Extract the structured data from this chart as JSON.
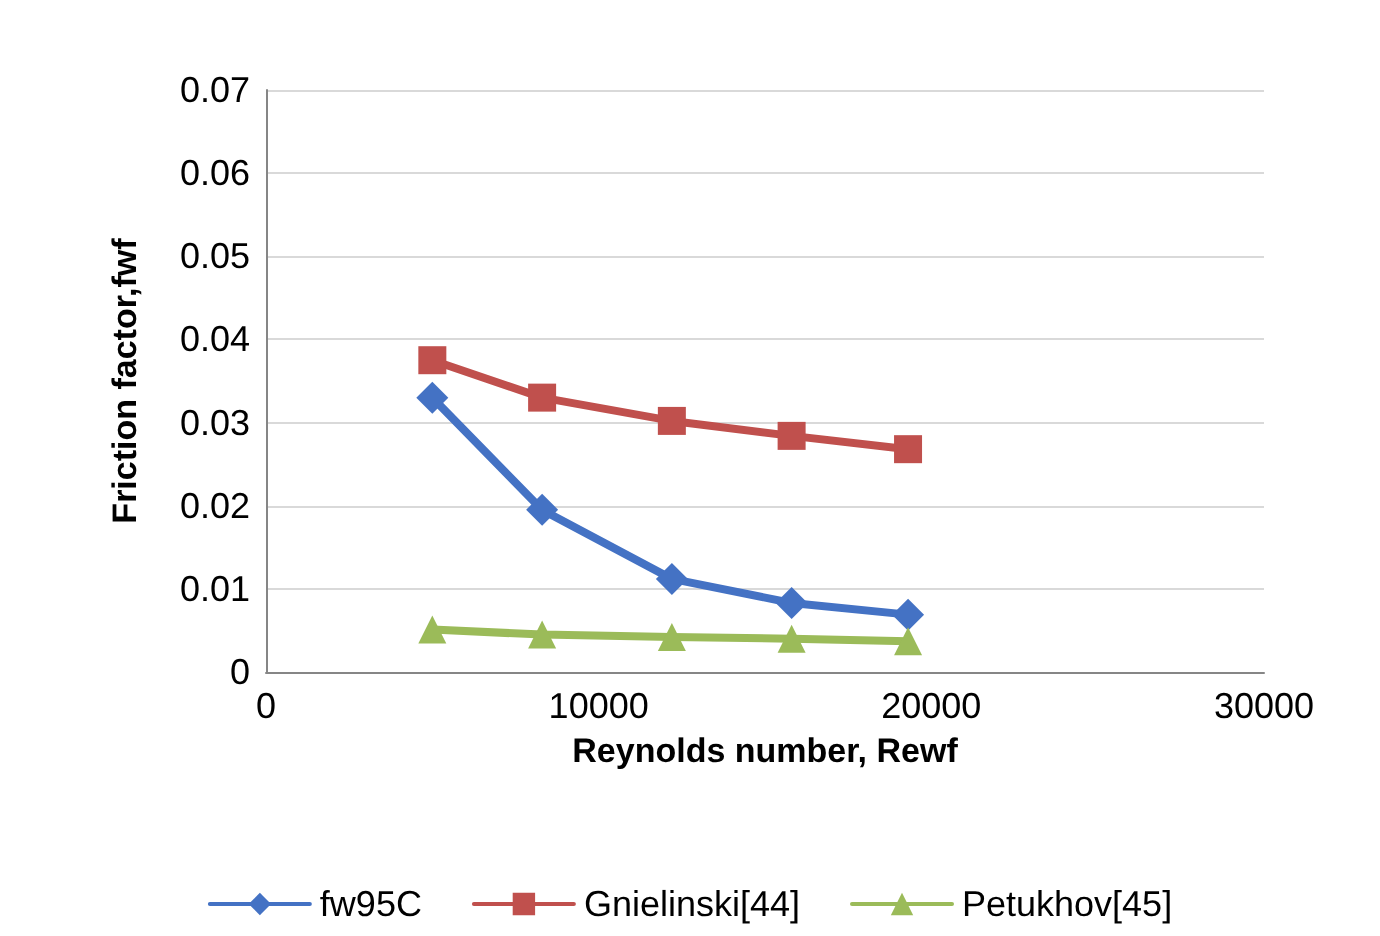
{
  "chart_data": {
    "type": "line",
    "xlabel": "Reynolds number, Rewf",
    "ylabel": "Friction factor,fwf",
    "xlim": [
      0,
      30000
    ],
    "xticks": [
      0,
      10000,
      20000,
      30000
    ],
    "ylim": [
      0,
      0.07
    ],
    "yticks": [
      0,
      0.01,
      0.02,
      0.03,
      0.04,
      0.05,
      0.06,
      0.07
    ],
    "grid": "y",
    "legend": "bottom",
    "series": [
      {
        "name": "fw95C",
        "color": "#4472c4",
        "marker": "diamond",
        "x": [
          5000,
          8300,
          12200,
          15800,
          19300
        ],
        "values": [
          0.033,
          0.0195,
          0.0112,
          0.0083,
          0.0069
        ]
      },
      {
        "name": "Gnielinski[44]",
        "color": "#c0504d",
        "marker": "square",
        "x": [
          5000,
          8300,
          12200,
          15800,
          19300
        ],
        "values": [
          0.0375,
          0.033,
          0.0302,
          0.0284,
          0.0268
        ]
      },
      {
        "name": "Petukhov[45]",
        "color": "#9bbb59",
        "marker": "triangle",
        "x": [
          5000,
          8300,
          12200,
          15800,
          19300
        ],
        "values": [
          0.0051,
          0.0045,
          0.0042,
          0.004,
          0.0037
        ]
      }
    ]
  }
}
